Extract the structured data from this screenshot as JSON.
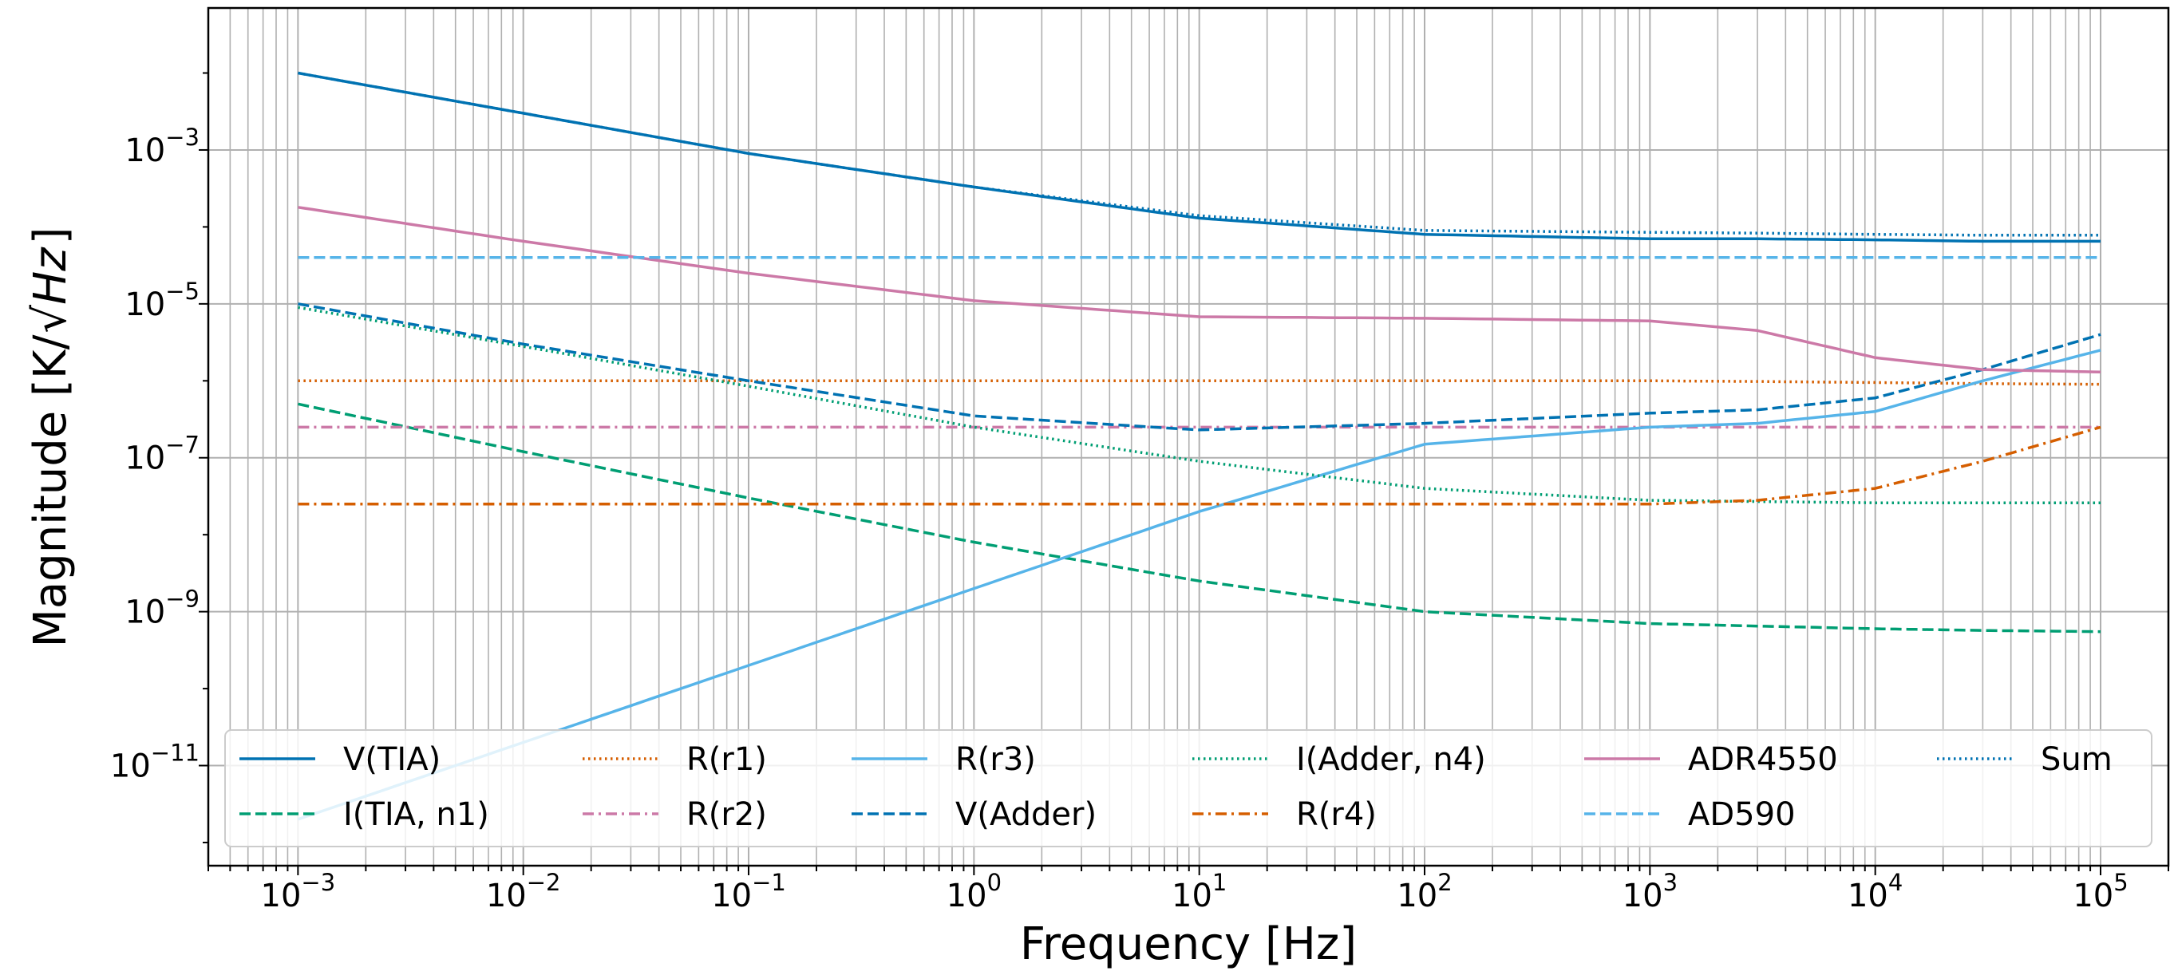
{
  "chart_data": {
    "type": "line",
    "title": "",
    "xlabel": "Frequency [Hz]",
    "ylabel_main": "Magnitude [K/",
    "ylabel_root": "Hz",
    "ylabel_close": "]",
    "xscale": "log",
    "yscale": "log",
    "xlim": [
      0.0004,
      200000
    ],
    "ylim": [
      5e-13,
      0.07
    ],
    "grid": true,
    "legend": {
      "placement": "lower center",
      "columns": 6
    },
    "x_ticks": [
      {
        "base": "10",
        "exp": "−3"
      },
      {
        "base": "10",
        "exp": "−2"
      },
      {
        "base": "10",
        "exp": "−1"
      },
      {
        "base": "10",
        "exp": "0"
      },
      {
        "base": "10",
        "exp": "1"
      },
      {
        "base": "10",
        "exp": "2"
      },
      {
        "base": "10",
        "exp": "3"
      },
      {
        "base": "10",
        "exp": "4"
      },
      {
        "base": "10",
        "exp": "5"
      }
    ],
    "y_ticks": [
      {
        "base": "10",
        "exp": "−11"
      },
      {
        "base": "10",
        "exp": "−9"
      },
      {
        "base": "10",
        "exp": "−7"
      },
      {
        "base": "10",
        "exp": "−5"
      },
      {
        "base": "10",
        "exp": "−3"
      }
    ],
    "x": [
      0.001,
      0.01,
      0.1,
      1,
      10,
      100,
      1000,
      3000,
      10000,
      30000,
      100000
    ],
    "series": [
      {
        "name": "V(TIA)",
        "color": "#0072b2",
        "dash": "solid",
        "values": [
          0.01,
          0.003,
          0.0009,
          0.00033,
          0.00013,
          8e-05,
          7e-05,
          7e-05,
          6.8e-05,
          6.5e-05,
          6.5e-05
        ]
      },
      {
        "name": "I(TIA, n1)",
        "color": "#009e73",
        "dash": "dashed",
        "values": [
          5e-07,
          1.2e-07,
          3e-08,
          8e-09,
          2.5e-09,
          1e-09,
          7e-10,
          6.5e-10,
          6e-10,
          5.7e-10,
          5.5e-10
        ]
      },
      {
        "name": "R(r1)",
        "color": "#d55e00",
        "dash": "dotted",
        "values": [
          1e-06,
          1e-06,
          1e-06,
          1e-06,
          1e-06,
          1e-06,
          1e-06,
          9.8e-07,
          9.5e-07,
          9.2e-07,
          9e-07
        ]
      },
      {
        "name": "R(r2)",
        "color": "#cc79a7",
        "dash": "dashdot",
        "values": [
          2.5e-07,
          2.5e-07,
          2.5e-07,
          2.5e-07,
          2.5e-07,
          2.5e-07,
          2.5e-07,
          2.5e-07,
          2.5e-07,
          2.5e-07,
          2.5e-07
        ]
      },
      {
        "name": "R(r3)",
        "color": "#56b4e9",
        "dash": "solid",
        "values": [
          2e-12,
          2e-11,
          2e-10,
          2e-09,
          2e-08,
          1.5e-07,
          2.5e-07,
          2.8e-07,
          4e-07,
          1e-06,
          2.5e-06
        ]
      },
      {
        "name": "V(Adder)",
        "color": "#0072b2",
        "dash": "dashed",
        "values": [
          1e-05,
          3e-06,
          1e-06,
          3.5e-07,
          2.3e-07,
          2.8e-07,
          3.8e-07,
          4.2e-07,
          6e-07,
          1.4e-06,
          4e-06
        ]
      },
      {
        "name": "I(Adder, n4)",
        "color": "#009e73",
        "dash": "dotted",
        "values": [
          9e-06,
          2.8e-06,
          8.5e-07,
          2.5e-07,
          9e-08,
          4e-08,
          2.8e-08,
          2.7e-08,
          2.6e-08,
          2.6e-08,
          2.6e-08
        ]
      },
      {
        "name": "R(r4)",
        "color": "#d55e00",
        "dash": "dashdot",
        "values": [
          2.5e-08,
          2.5e-08,
          2.5e-08,
          2.5e-08,
          2.5e-08,
          2.5e-08,
          2.5e-08,
          2.8e-08,
          4e-08,
          9e-08,
          2.5e-07
        ]
      },
      {
        "name": "ADR4550",
        "color": "#cc79a7",
        "dash": "solid",
        "values": [
          0.00018,
          6.5e-05,
          2.5e-05,
          1.1e-05,
          6.8e-06,
          6.5e-06,
          6e-06,
          4.5e-06,
          2e-06,
          1.4e-06,
          1.3e-06
        ]
      },
      {
        "name": "AD590",
        "color": "#56b4e9",
        "dash": "dashed",
        "values": [
          4e-05,
          4e-05,
          4e-05,
          4e-05,
          4e-05,
          4e-05,
          4e-05,
          4e-05,
          4e-05,
          4e-05,
          4e-05
        ]
      },
      {
        "name": "Sum",
        "color": "#0072b2",
        "dash": "dotted",
        "values": [
          0.01,
          0.003,
          0.0009,
          0.00033,
          0.00014,
          9e-05,
          8.5e-05,
          8.3e-05,
          8e-05,
          7.8e-05,
          7.8e-05
        ]
      }
    ]
  }
}
